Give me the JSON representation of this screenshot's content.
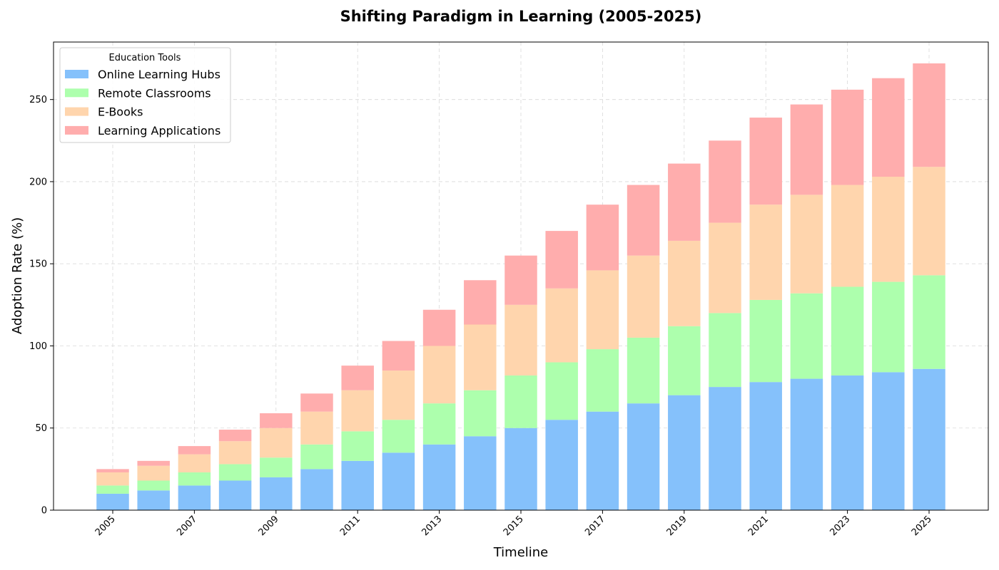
{
  "chart_data": {
    "type": "bar",
    "stacked": true,
    "title": "Shifting Paradigm in Learning (2005-2025)",
    "xlabel": "Timeline",
    "ylabel": "Adoption Rate (%)",
    "categories": [
      "2005",
      "2006",
      "2007",
      "2008",
      "2009",
      "2010",
      "2011",
      "2012",
      "2013",
      "2014",
      "2015",
      "2016",
      "2017",
      "2018",
      "2019",
      "2020",
      "2021",
      "2022",
      "2023",
      "2024",
      "2025"
    ],
    "x_tick_labels": [
      "2005",
      "2007",
      "2009",
      "2011",
      "2013",
      "2015",
      "2017",
      "2019",
      "2021",
      "2023",
      "2025"
    ],
    "y_ticks": [
      0,
      50,
      100,
      150,
      200,
      250
    ],
    "ylim": [
      0,
      285
    ],
    "grid": true,
    "legend": {
      "title": "Education Tools",
      "placement": "top-left"
    },
    "series": [
      {
        "name": "Online Learning Hubs",
        "color": "#85c1fb",
        "values": [
          10,
          12,
          15,
          18,
          20,
          25,
          30,
          35,
          40,
          45,
          50,
          55,
          60,
          65,
          70,
          75,
          78,
          80,
          82,
          84,
          86
        ]
      },
      {
        "name": "Remote Classrooms",
        "color": "#adffad",
        "values": [
          5,
          6,
          8,
          10,
          12,
          15,
          18,
          20,
          25,
          28,
          32,
          35,
          38,
          40,
          42,
          45,
          50,
          52,
          54,
          55,
          57
        ]
      },
      {
        "name": "E-Books",
        "color": "#ffd5ad",
        "values": [
          8,
          9,
          11,
          14,
          18,
          20,
          25,
          30,
          35,
          40,
          43,
          45,
          48,
          50,
          52,
          55,
          58,
          60,
          62,
          64,
          66
        ]
      },
      {
        "name": "Learning Applications",
        "color": "#ffadad",
        "values": [
          2,
          3,
          5,
          7,
          9,
          11,
          15,
          18,
          22,
          27,
          30,
          35,
          40,
          43,
          47,
          50,
          53,
          55,
          58,
          60,
          63
        ]
      }
    ]
  }
}
